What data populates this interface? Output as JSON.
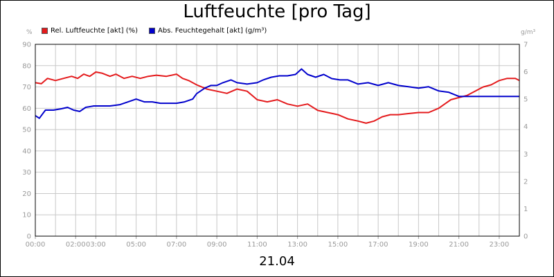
{
  "chart_data": {
    "type": "line",
    "title": "Luftfeuchte [pro Tag]",
    "date_label": "21.04",
    "y_left": {
      "unit": "%",
      "min": 0,
      "max": 90,
      "ticks": [
        "0",
        "10",
        "20",
        "30",
        "40",
        "50",
        "60",
        "70",
        "80",
        "90"
      ]
    },
    "y_right": {
      "unit": "g/m³",
      "min": 0,
      "max": 7,
      "ticks": [
        "0",
        "1",
        "2",
        "3",
        "4",
        "5",
        "6",
        "7"
      ]
    },
    "x": {
      "min": 0,
      "max": 24,
      "tick_hours": [
        0,
        2,
        3,
        5,
        7,
        9,
        11,
        13,
        15,
        17,
        19,
        21,
        23
      ],
      "tick_labels": [
        "00:00",
        "02:00",
        "03:00",
        "05:00",
        "07:00",
        "09:00",
        "11:00",
        "13:00",
        "15:00",
        "17:00",
        "19:00",
        "21:00",
        "23:00"
      ]
    },
    "grid": true,
    "legend_position": "top-left",
    "series": [
      {
        "name": "Rel. Luftfeuchte [akt] (%)",
        "color": "#e41a1c",
        "axis": "left",
        "points": [
          [
            0,
            72
          ],
          [
            0.3,
            71.5
          ],
          [
            0.6,
            74
          ],
          [
            1,
            73
          ],
          [
            1.4,
            74
          ],
          [
            1.8,
            75
          ],
          [
            2.1,
            74
          ],
          [
            2.4,
            76
          ],
          [
            2.7,
            75
          ],
          [
            3,
            77
          ],
          [
            3.3,
            76.5
          ],
          [
            3.7,
            75
          ],
          [
            4,
            76
          ],
          [
            4.4,
            74
          ],
          [
            4.8,
            75
          ],
          [
            5.2,
            74
          ],
          [
            5.6,
            75
          ],
          [
            6,
            75.5
          ],
          [
            6.5,
            75
          ],
          [
            7,
            76
          ],
          [
            7.3,
            74
          ],
          [
            7.6,
            73
          ],
          [
            8,
            71
          ],
          [
            8.5,
            69
          ],
          [
            9,
            68
          ],
          [
            9.5,
            67
          ],
          [
            10,
            69
          ],
          [
            10.5,
            68
          ],
          [
            11,
            64
          ],
          [
            11.5,
            63
          ],
          [
            12,
            64
          ],
          [
            12.5,
            62
          ],
          [
            13,
            61
          ],
          [
            13.5,
            62
          ],
          [
            14,
            59
          ],
          [
            14.5,
            58
          ],
          [
            15,
            57
          ],
          [
            15.5,
            55
          ],
          [
            16,
            54
          ],
          [
            16.4,
            53
          ],
          [
            16.8,
            54
          ],
          [
            17.2,
            56
          ],
          [
            17.6,
            57
          ],
          [
            18,
            57
          ],
          [
            18.5,
            57.5
          ],
          [
            19,
            58
          ],
          [
            19.5,
            58
          ],
          [
            20,
            60
          ],
          [
            20.3,
            62
          ],
          [
            20.6,
            64
          ],
          [
            21,
            65
          ],
          [
            21.4,
            66
          ],
          [
            21.8,
            68
          ],
          [
            22.2,
            70
          ],
          [
            22.6,
            71
          ],
          [
            23,
            73
          ],
          [
            23.4,
            74
          ],
          [
            23.8,
            74
          ],
          [
            24,
            73
          ]
        ]
      },
      {
        "name": "Abs. Feuchtegehalt [akt] (g/m³)",
        "color": "#0000cc",
        "axis": "right",
        "points": [
          [
            0,
            4.4
          ],
          [
            0.2,
            4.3
          ],
          [
            0.5,
            4.6
          ],
          [
            0.9,
            4.6
          ],
          [
            1.3,
            4.65
          ],
          [
            1.6,
            4.7
          ],
          [
            1.9,
            4.6
          ],
          [
            2.2,
            4.55
          ],
          [
            2.5,
            4.7
          ],
          [
            2.9,
            4.75
          ],
          [
            3.3,
            4.75
          ],
          [
            3.7,
            4.75
          ],
          [
            4.2,
            4.8
          ],
          [
            4.6,
            4.9
          ],
          [
            5,
            5.0
          ],
          [
            5.4,
            4.9
          ],
          [
            5.8,
            4.9
          ],
          [
            6.2,
            4.85
          ],
          [
            6.6,
            4.85
          ],
          [
            7,
            4.85
          ],
          [
            7.4,
            4.9
          ],
          [
            7.8,
            5.0
          ],
          [
            8,
            5.2
          ],
          [
            8.4,
            5.4
          ],
          [
            8.7,
            5.5
          ],
          [
            9,
            5.5
          ],
          [
            9.3,
            5.6
          ],
          [
            9.7,
            5.7
          ],
          [
            10,
            5.6
          ],
          [
            10.5,
            5.55
          ],
          [
            11,
            5.6
          ],
          [
            11.3,
            5.7
          ],
          [
            11.7,
            5.8
          ],
          [
            12.1,
            5.85
          ],
          [
            12.5,
            5.85
          ],
          [
            12.9,
            5.9
          ],
          [
            13.2,
            6.1
          ],
          [
            13.5,
            5.9
          ],
          [
            13.9,
            5.8
          ],
          [
            14.3,
            5.9
          ],
          [
            14.7,
            5.75
          ],
          [
            15.1,
            5.7
          ],
          [
            15.5,
            5.7
          ],
          [
            16,
            5.55
          ],
          [
            16.5,
            5.6
          ],
          [
            17,
            5.5
          ],
          [
            17.5,
            5.6
          ],
          [
            18,
            5.5
          ],
          [
            18.5,
            5.45
          ],
          [
            19,
            5.4
          ],
          [
            19.5,
            5.45
          ],
          [
            20,
            5.3
          ],
          [
            20.5,
            5.25
          ],
          [
            21,
            5.1
          ],
          [
            21.5,
            5.1
          ],
          [
            22,
            5.1
          ],
          [
            22.5,
            5.1
          ],
          [
            23,
            5.1
          ],
          [
            23.5,
            5.1
          ],
          [
            24,
            5.1
          ]
        ]
      }
    ]
  }
}
